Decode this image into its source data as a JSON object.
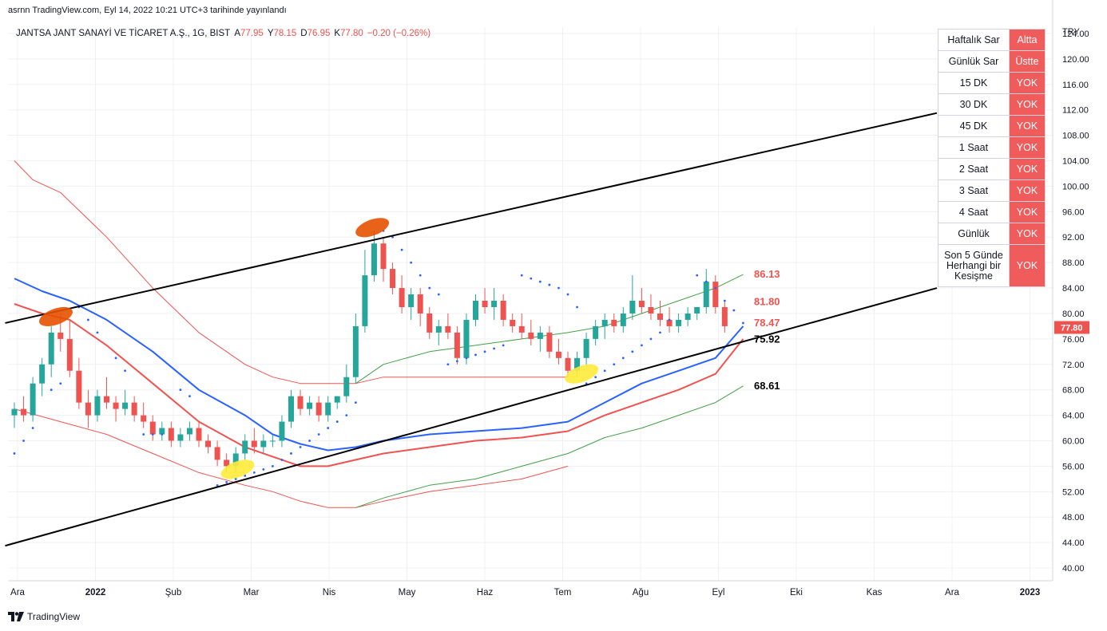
{
  "published_by": "asrnn TradingView.com, Eyl 14, 2022 10:21 UTC+3 tarihinde yayınlandı",
  "header": {
    "title": "JANTSA JANT SANAYİ VE TİCARET A.Ş., 1G, BIST",
    "o_label": "A",
    "o": "77.95",
    "h_label": "Y",
    "h": "78.15",
    "l_label": "D",
    "l": "76.95",
    "c_label": "K",
    "c": "77.80",
    "change": "−0.20 (−0.26%)"
  },
  "signal_table": [
    {
      "label": "Haftalık Sar",
      "value": "Altta"
    },
    {
      "label": "Günlük Sar",
      "value": "Üstte"
    },
    {
      "label": "15 DK",
      "value": "YOK"
    },
    {
      "label": "30 DK",
      "value": "YOK"
    },
    {
      "label": "45 DK",
      "value": "YOK"
    },
    {
      "label": "1 Saat",
      "value": "YOK"
    },
    {
      "label": "2 Saat",
      "value": "YOK"
    },
    {
      "label": "3 Saat",
      "value": "YOK"
    },
    {
      "label": "4 Saat",
      "value": "YOK"
    },
    {
      "label": "Günlük",
      "value": "YOK"
    },
    {
      "label": "Son 5 Günde Herhangi bir Kesişme",
      "value": "YOK"
    }
  ],
  "footer": {
    "brand": "TradingView"
  },
  "colors": {
    "up": "#26a69a",
    "down": "#ef5350",
    "grid": "#eef0f3",
    "blue_ma": "#2962ff",
    "red_ma": "#ef5350",
    "green_band": "#43a047",
    "trendline": "#000000",
    "highlight_orange": "#e65100",
    "highlight_yellow": "#ffeb3b",
    "table_red": "#f05b5b"
  },
  "chart_data": {
    "type": "candlestick",
    "title": "JANTSA JANT SANAYİ VE TİCARET A.Ş., 1G, BIST",
    "currency": "TRY",
    "x_tick_labels": [
      "Ara",
      "2022",
      "Şub",
      "Mar",
      "Nis",
      "May",
      "Haz",
      "Tem",
      "Ağu",
      "Eyl",
      "Eki",
      "Kas",
      "Ara",
      "2023"
    ],
    "y_ticks": [
      40,
      44,
      48,
      52,
      56,
      60,
      64,
      68,
      72,
      76,
      80,
      84,
      88,
      92,
      96,
      100,
      104,
      108,
      112,
      116,
      120,
      124
    ],
    "ylim": [
      38,
      125
    ],
    "last_price": 77.8,
    "level_labels": [
      {
        "value": "86.13",
        "color": "#ef5350"
      },
      {
        "value": "81.80",
        "color": "#ef5350"
      },
      {
        "value": "78.47",
        "color": "#ef5350"
      },
      {
        "value": "75.92",
        "color": "#000000"
      },
      {
        "value": "68.61",
        "color": "#000000"
      }
    ],
    "candles": [
      [
        64,
        66,
        62,
        65
      ],
      [
        65,
        67,
        63,
        64
      ],
      [
        64,
        70,
        63,
        69
      ],
      [
        69,
        73,
        67,
        72
      ],
      [
        72,
        78,
        70,
        77
      ],
      [
        77,
        80,
        74,
        76
      ],
      [
        76,
        79,
        70,
        71
      ],
      [
        71,
        73,
        65,
        66
      ],
      [
        66,
        68,
        62,
        64
      ],
      [
        64,
        68,
        63,
        67
      ],
      [
        67,
        70,
        65,
        66
      ],
      [
        66,
        67,
        63,
        65
      ],
      [
        65,
        68,
        64,
        66
      ],
      [
        66,
        67,
        63,
        64
      ],
      [
        64,
        66,
        62,
        63
      ],
      [
        63,
        64,
        60,
        61
      ],
      [
        61,
        63,
        60,
        62
      ],
      [
        62,
        63,
        59,
        60
      ],
      [
        60,
        62,
        59,
        61
      ],
      [
        61,
        63,
        60,
        62
      ],
      [
        62,
        63,
        59,
        60
      ],
      [
        60,
        61,
        58,
        59
      ],
      [
        59,
        60,
        56,
        57
      ],
      [
        57,
        58,
        55,
        56
      ],
      [
        56,
        59,
        55,
        58
      ],
      [
        58,
        61,
        57,
        60
      ],
      [
        60,
        62,
        58,
        59
      ],
      [
        59,
        61,
        58,
        60
      ],
      [
        60,
        61,
        59,
        60
      ],
      [
        60,
        64,
        59,
        63
      ],
      [
        63,
        68,
        62,
        67
      ],
      [
        67,
        68,
        64,
        65
      ],
      [
        65,
        67,
        64,
        66
      ],
      [
        66,
        67,
        63,
        64
      ],
      [
        64,
        67,
        63,
        66
      ],
      [
        66,
        67,
        65,
        67
      ],
      [
        67,
        72,
        66,
        70
      ],
      [
        70,
        80,
        69,
        78
      ],
      [
        78,
        90,
        77,
        86
      ],
      [
        86,
        93,
        85,
        91
      ],
      [
        91,
        92,
        85,
        87
      ],
      [
        87,
        88,
        83,
        84
      ],
      [
        84,
        86,
        80,
        81
      ],
      [
        81,
        84,
        79,
        83
      ],
      [
        83,
        84,
        78,
        80
      ],
      [
        80,
        81,
        76,
        77
      ],
      [
        77,
        79,
        75,
        78
      ],
      [
        78,
        80,
        76,
        77
      ],
      [
        77,
        78,
        72,
        73
      ],
      [
        73,
        80,
        72,
        79
      ],
      [
        79,
        83,
        78,
        82
      ],
      [
        82,
        84,
        80,
        81
      ],
      [
        81,
        84,
        79,
        82
      ],
      [
        82,
        83,
        78,
        79
      ],
      [
        79,
        80,
        77,
        78
      ],
      [
        78,
        80,
        76,
        77
      ],
      [
        77,
        79,
        75,
        76
      ],
      [
        76,
        78,
        74,
        77
      ],
      [
        77,
        78,
        73,
        74
      ],
      [
        74,
        76,
        72,
        73
      ],
      [
        73,
        74,
        70,
        71
      ],
      [
        71,
        74,
        70,
        73
      ],
      [
        73,
        77,
        72,
        76
      ],
      [
        76,
        79,
        75,
        78
      ],
      [
        78,
        80,
        76,
        79
      ],
      [
        79,
        80,
        77,
        78
      ],
      [
        78,
        81,
        77,
        80
      ],
      [
        80,
        86,
        79,
        82
      ],
      [
        82,
        84,
        80,
        81
      ],
      [
        81,
        83,
        79,
        80
      ],
      [
        80,
        82,
        78,
        79
      ],
      [
        79,
        81,
        77,
        78
      ],
      [
        78,
        80,
        77,
        79
      ],
      [
        79,
        81,
        78,
        80
      ],
      [
        80,
        81,
        79,
        81
      ],
      [
        81,
        87,
        80,
        85
      ],
      [
        85,
        86,
        80,
        81
      ],
      [
        81,
        82,
        77,
        78
      ]
    ],
    "series": [
      {
        "name": "",
        "color": "#ef5350",
        "width": 1,
        "points": [
          [
            0,
            104
          ],
          [
            2,
            101
          ],
          [
            5,
            99
          ],
          [
            10,
            92
          ],
          [
            15,
            84
          ],
          [
            20,
            77
          ],
          [
            25,
            72
          ],
          [
            28,
            70
          ],
          [
            31,
            69
          ],
          [
            34,
            69
          ],
          [
            37,
            69
          ],
          [
            40,
            70
          ],
          [
            45,
            70
          ],
          [
            50,
            70
          ],
          [
            55,
            70
          ],
          [
            60,
            70
          ]
        ]
      },
      {
        "name": "",
        "color": "#2962ff",
        "width": 2,
        "points": [
          [
            0,
            85.5
          ],
          [
            3,
            83.5
          ],
          [
            6,
            82
          ],
          [
            10,
            79
          ],
          [
            15,
            74
          ],
          [
            20,
            68
          ],
          [
            25,
            64
          ],
          [
            28,
            61
          ],
          [
            31,
            59.5
          ],
          [
            34,
            58.5
          ],
          [
            37,
            59
          ],
          [
            40,
            60
          ],
          [
            45,
            61
          ],
          [
            50,
            61.5
          ],
          [
            55,
            62
          ],
          [
            60,
            63
          ],
          [
            64,
            66
          ],
          [
            68,
            69
          ],
          [
            72,
            71
          ],
          [
            76,
            73
          ],
          [
            79,
            78
          ]
        ]
      },
      {
        "name": "",
        "color": "#ef5350",
        "width": 2,
        "points": [
          [
            0,
            81.5
          ],
          [
            3,
            80
          ],
          [
            6,
            79
          ],
          [
            10,
            75
          ],
          [
            15,
            69
          ],
          [
            20,
            63
          ],
          [
            25,
            59
          ],
          [
            28,
            57.5
          ],
          [
            31,
            56
          ],
          [
            34,
            56
          ],
          [
            37,
            57
          ],
          [
            40,
            58
          ],
          [
            45,
            59
          ],
          [
            50,
            60
          ],
          [
            55,
            60.5
          ],
          [
            60,
            61.5
          ],
          [
            64,
            64
          ],
          [
            68,
            66
          ],
          [
            72,
            68
          ],
          [
            76,
            70.5
          ],
          [
            79,
            76
          ]
        ]
      },
      {
        "name": "",
        "color": "#ef5350",
        "width": 1,
        "points": [
          [
            0,
            65
          ],
          [
            5,
            63
          ],
          [
            10,
            61
          ],
          [
            15,
            58
          ],
          [
            20,
            55
          ],
          [
            25,
            53
          ],
          [
            28,
            52
          ],
          [
            31,
            50.5
          ],
          [
            34,
            49.5
          ],
          [
            37,
            49.5
          ],
          [
            40,
            50.5
          ],
          [
            45,
            52
          ],
          [
            50,
            53
          ],
          [
            55,
            54
          ],
          [
            60,
            56
          ]
        ]
      },
      {
        "name": "",
        "color": "#43a047",
        "width": 1,
        "points": [
          [
            37,
            69
          ],
          [
            40,
            72
          ],
          [
            45,
            74
          ],
          [
            50,
            75
          ],
          [
            55,
            76
          ],
          [
            60,
            77
          ],
          [
            64,
            78
          ],
          [
            68,
            80
          ],
          [
            72,
            82
          ],
          [
            76,
            84
          ],
          [
            79,
            86.13
          ]
        ]
      },
      {
        "name": "",
        "color": "#43a047",
        "width": 1,
        "points": [
          [
            37,
            49.5
          ],
          [
            40,
            51
          ],
          [
            45,
            53
          ],
          [
            50,
            54
          ],
          [
            55,
            56
          ],
          [
            60,
            58
          ],
          [
            64,
            60.5
          ],
          [
            68,
            62
          ],
          [
            72,
            64
          ],
          [
            76,
            66
          ],
          [
            79,
            68.61
          ]
        ]
      }
    ],
    "trendlines": [
      {
        "points": [
          [
            -1,
            78.5
          ],
          [
            100,
            111.5
          ]
        ]
      },
      {
        "points": [
          [
            -1,
            43.5
          ],
          [
            100,
            84
          ]
        ]
      }
    ],
    "highlights": [
      {
        "x": 4.5,
        "y": 79.5,
        "color": "#e65100"
      },
      {
        "x": 38.8,
        "y": 93.5,
        "color": "#e65100"
      },
      {
        "x": 24.2,
        "y": 55.5,
        "color": "#ffeb3b"
      },
      {
        "x": 61.5,
        "y": 70.5,
        "color": "#ffeb3b"
      }
    ],
    "sar_points": [
      [
        0,
        58
      ],
      [
        1,
        60
      ],
      [
        2,
        62
      ],
      [
        4,
        68
      ],
      [
        5,
        69
      ],
      [
        7,
        81
      ],
      [
        8,
        79
      ],
      [
        9,
        77
      ],
      [
        11,
        73
      ],
      [
        12,
        71
      ],
      [
        14,
        61
      ],
      [
        15,
        61
      ],
      [
        16,
        61
      ],
      [
        18,
        68
      ],
      [
        19,
        67
      ],
      [
        22,
        53
      ],
      [
        23,
        53.5
      ],
      [
        24,
        54
      ],
      [
        25,
        54.5
      ],
      [
        26,
        55
      ],
      [
        27,
        55.5
      ],
      [
        28,
        56
      ],
      [
        29,
        57
      ],
      [
        30,
        58
      ],
      [
        31,
        59
      ],
      [
        32,
        60
      ],
      [
        33,
        61
      ],
      [
        34,
        62
      ],
      [
        35,
        63
      ],
      [
        36,
        64
      ],
      [
        37,
        66
      ],
      [
        40,
        93
      ],
      [
        41,
        92
      ],
      [
        42,
        90
      ],
      [
        43,
        88
      ],
      [
        44,
        86
      ],
      [
        45,
        84
      ],
      [
        46,
        83
      ],
      [
        47,
        72
      ],
      [
        48,
        72.5
      ],
      [
        49,
        73
      ],
      [
        50,
        73.5
      ],
      [
        51,
        74
      ],
      [
        52,
        74.5
      ],
      [
        53,
        75
      ],
      [
        55,
        86
      ],
      [
        56,
        85.5
      ],
      [
        57,
        85
      ],
      [
        58,
        84.5
      ],
      [
        59,
        84
      ],
      [
        60,
        83
      ],
      [
        61,
        81
      ],
      [
        62,
        69
      ],
      [
        63,
        70
      ],
      [
        64,
        71
      ],
      [
        65,
        72
      ],
      [
        66,
        73
      ],
      [
        67,
        74
      ],
      [
        68,
        75
      ],
      [
        69,
        76
      ],
      [
        70,
        77
      ],
      [
        71,
        79
      ],
      [
        74,
        86
      ],
      [
        75,
        85
      ],
      [
        76,
        84
      ],
      [
        77,
        82
      ],
      [
        78,
        80.5
      ],
      [
        79,
        78.5
      ]
    ]
  }
}
